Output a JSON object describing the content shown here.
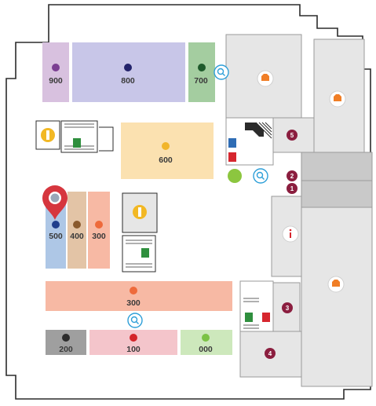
{
  "zones": [
    {
      "id": "900",
      "label": "900",
      "fill": "#d8c1df",
      "dot": "#7b3f92"
    },
    {
      "id": "800",
      "label": "800",
      "fill": "#c8c6e8",
      "dot": "#23236b"
    },
    {
      "id": "700",
      "label": "700",
      "fill": "#a4cda0",
      "dot": "#1e5a2b"
    },
    {
      "id": "600",
      "label": "600",
      "fill": "#fbe1b0",
      "dot": "#f1b52a"
    },
    {
      "id": "500",
      "label": "500",
      "fill": "#aec7e6",
      "dot": "#1f3e8c"
    },
    {
      "id": "400",
      "label": "400",
      "fill": "#e3c4a6",
      "dot": "#8a5a2e"
    },
    {
      "id": "300a",
      "label": "300",
      "fill": "#f7b9a4",
      "dot": "#ee6a3b"
    },
    {
      "id": "300b",
      "label": "300",
      "fill": "#f7b9a4",
      "dot": "#ee6a3b"
    },
    {
      "id": "200",
      "label": "200",
      "fill": "#9f9f9f",
      "dot": "#2d2d2d"
    },
    {
      "id": "100",
      "label": "100",
      "fill": "#f4c5cb",
      "dot": "#d4252a"
    },
    {
      "id": "000",
      "label": "000",
      "fill": "#cde8bc",
      "dot": "#7bc246"
    }
  ],
  "badges": [
    "5",
    "2",
    "1",
    "3",
    "4"
  ],
  "colors": {
    "wall": "#2b2b2b",
    "room": "#e6e6e6",
    "room_stroke": "#9a9a9a",
    "corridor": "#c9c9c9",
    "badge": "#8b1e3f",
    "search": "#2e9fd8",
    "shop": "#f07e26",
    "info": "#d6262e",
    "pin": "#d6363e",
    "restroom_male": "#2f6db5",
    "restroom_female": "#d6262e",
    "stairs_green": "#2f8f3e",
    "elevator": "#f2b824",
    "waste": "#8cc63f"
  },
  "icons": {
    "search": "search-icon",
    "shop": "shop-icon",
    "info": "info-icon",
    "pin": "location-pin-icon",
    "elevator": "elevator-icon",
    "stairs": "stairs-icon",
    "restroom_male": "male-restroom-icon",
    "restroom_female": "female-restroom-icon",
    "waste": "waste-bin-icon",
    "escalator": "escalator-icon"
  }
}
